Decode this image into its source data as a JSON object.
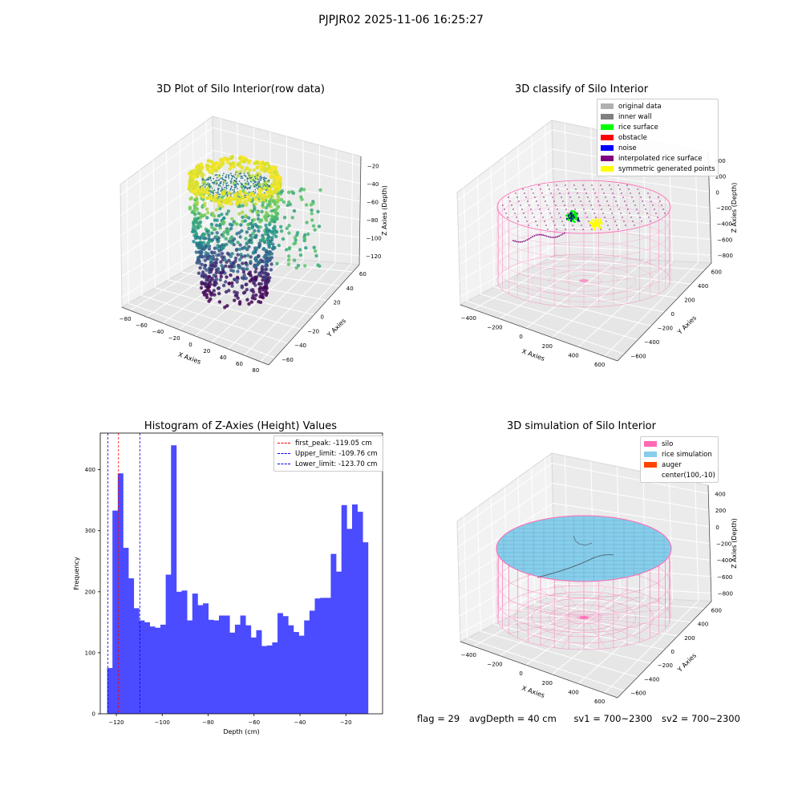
{
  "suptitle": "PJPJR02 2025-11-06 16:25:27",
  "footer": {
    "flag": "flag = 29",
    "avg_depth": "avgDepth = 40 cm",
    "sv1": "sv1 = 700~2300",
    "sv2": "sv2 = 700~2300"
  },
  "chart_data": [
    {
      "type": "scatter",
      "title": "3D Plot of Silo Interior(row data)",
      "xlabel": "X Axies",
      "ylabel": "Y Axies",
      "zlabel": "Z Axies (Depth)",
      "x_ticks": [
        "−80",
        "−60",
        "−40",
        "−20",
        "0",
        "20",
        "40",
        "60",
        "80"
      ],
      "y_ticks": [
        "−60",
        "−40",
        "−20",
        "0",
        "20",
        "40",
        "60"
      ],
      "z_ticks": [
        "−120",
        "−100",
        "−80",
        "−60",
        "−40",
        "−20"
      ],
      "colormap": "viridis"
    },
    {
      "type": "scatter",
      "title": "3D classify of Silo Interior",
      "xlabel": "X Axies",
      "ylabel": "Y Axies",
      "zlabel": "Z Axies (Depth)",
      "x_ticks": [
        "−400",
        "−200",
        "0",
        "200",
        "400",
        "600"
      ],
      "y_ticks": [
        "−600",
        "−400",
        "−200",
        "0",
        "200",
        "400",
        "600"
      ],
      "z_ticks": [
        "−800",
        "−600",
        "−400",
        "−200",
        "0",
        "200",
        "400"
      ],
      "legend": [
        {
          "label": "original data",
          "color": "#b0b0b0"
        },
        {
          "label": "inner wall",
          "color": "#808080"
        },
        {
          "label": "rice surface",
          "color": "#00ff00"
        },
        {
          "label": "obstacle",
          "color": "#ff0000"
        },
        {
          "label": "noise",
          "color": "#0000ff"
        },
        {
          "label": "interpolated rice surface",
          "color": "#800080"
        },
        {
          "label": "symmetric generated points",
          "color": "#ffff00"
        }
      ]
    },
    {
      "type": "bar",
      "title": "Histogram of Z-Axies (Height) Values",
      "xlabel": "Depth (cm)",
      "ylabel": "Frequency",
      "xlim": [
        -127,
        -4
      ],
      "ylim": [
        0,
        460
      ],
      "x_ticks": [
        -120,
        -100,
        -80,
        -60,
        -40,
        -20
      ],
      "x_tick_labels": [
        "−120",
        "−100",
        "−80",
        "−60",
        "−40",
        "−20"
      ],
      "y_ticks": [
        0,
        100,
        200,
        300,
        400
      ],
      "bar_color": "#4b4bff",
      "bin_start": -124,
      "bin_width": 2.32,
      "values": [
        75,
        333,
        394,
        272,
        222,
        173,
        153,
        150,
        143,
        141,
        146,
        228,
        440,
        200,
        202,
        153,
        197,
        178,
        181,
        154,
        153,
        161,
        161,
        133,
        146,
        161,
        145,
        125,
        137,
        111,
        112,
        117,
        165,
        160,
        145,
        134,
        128,
        153,
        169,
        189,
        190,
        190,
        262,
        233,
        342,
        303,
        343,
        331,
        281
      ],
      "vlines": [
        {
          "label": "first_peak: -119.05 cm",
          "x": -119.05,
          "color": "#ff0000"
        },
        {
          "label": "Upper_limit: -109.76 cm",
          "x": -109.76,
          "color": "#0000ff"
        },
        {
          "label": "Lower_limit: -123.70 cm",
          "x": -123.7,
          "color": "#0000ff"
        }
      ]
    },
    {
      "type": "area",
      "title": "3D simulation of Silo Interior",
      "xlabel": "X Axies",
      "ylabel": "Y Axies",
      "zlabel": "Z Axies (Depth)",
      "x_ticks": [
        "−400",
        "−200",
        "0",
        "200",
        "400",
        "600"
      ],
      "y_ticks": [
        "−600",
        "−400",
        "−200",
        "0",
        "200",
        "400",
        "600"
      ],
      "z_ticks": [
        "−800",
        "−600",
        "−400",
        "−200",
        "0",
        "200",
        "400"
      ],
      "legend": [
        {
          "label": "silo",
          "color": "#ff69b4"
        },
        {
          "label": "rice simulation",
          "color": "#87ceeb"
        },
        {
          "label": "auger",
          "color": "#ff4500"
        },
        {
          "label": "center(100,-10)",
          "color": ""
        }
      ]
    }
  ]
}
